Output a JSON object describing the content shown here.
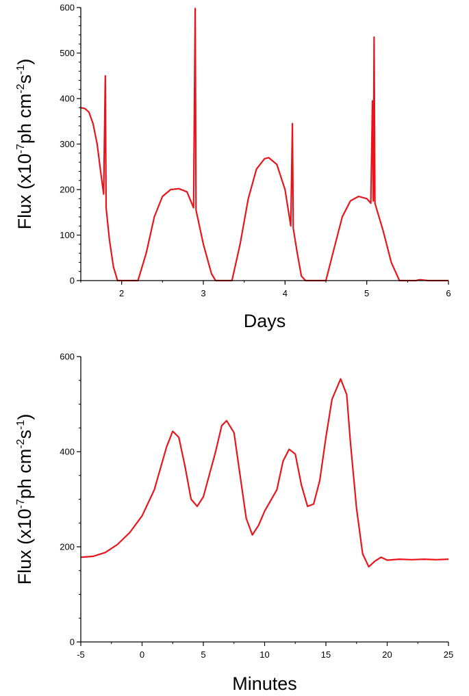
{
  "colors": {
    "series": "#e8141b",
    "axis": "#000000",
    "background": "#ffffff"
  },
  "chart_data": [
    {
      "type": "line",
      "title": "",
      "xlabel": "Days",
      "ylabel_parts": [
        "Flux (x10",
        "-7",
        "ph cm",
        "-2",
        "s",
        "-1",
        ")"
      ],
      "xlim": [
        1.5,
        6
      ],
      "ylim": [
        0,
        600
      ],
      "grid": false,
      "legend": "none",
      "x_ticks": [
        2,
        3,
        4,
        5,
        6
      ],
      "y_ticks": [
        0,
        100,
        200,
        300,
        400,
        500,
        600
      ],
      "series": [
        {
          "points": [
            [
              1.5,
              380
            ],
            [
              1.55,
              378
            ],
            [
              1.6,
              370
            ],
            [
              1.65,
              345
            ],
            [
              1.7,
              300
            ],
            [
              1.75,
              230
            ],
            [
              1.78,
              190
            ],
            [
              1.8,
              450
            ],
            [
              1.81,
              160
            ],
            [
              1.85,
              90
            ],
            [
              1.9,
              30
            ],
            [
              1.95,
              0
            ],
            [
              2.2,
              0
            ],
            [
              2.3,
              60
            ],
            [
              2.4,
              140
            ],
            [
              2.5,
              185
            ],
            [
              2.6,
              200
            ],
            [
              2.7,
              202
            ],
            [
              2.8,
              195
            ],
            [
              2.88,
              160
            ],
            [
              2.9,
              598
            ],
            [
              2.91,
              155
            ],
            [
              3.0,
              80
            ],
            [
              3.1,
              15
            ],
            [
              3.15,
              0
            ],
            [
              3.35,
              0
            ],
            [
              3.45,
              80
            ],
            [
              3.55,
              180
            ],
            [
              3.65,
              245
            ],
            [
              3.75,
              268
            ],
            [
              3.8,
              270
            ],
            [
              3.9,
              255
            ],
            [
              4.0,
              200
            ],
            [
              4.07,
              120
            ],
            [
              4.09,
              345
            ],
            [
              4.1,
              115
            ],
            [
              4.15,
              60
            ],
            [
              4.2,
              10
            ],
            [
              4.25,
              0
            ],
            [
              4.5,
              0
            ],
            [
              4.6,
              70
            ],
            [
              4.7,
              140
            ],
            [
              4.8,
              175
            ],
            [
              4.9,
              185
            ],
            [
              5.0,
              180
            ],
            [
              5.05,
              170
            ],
            [
              5.07,
              395
            ],
            [
              5.08,
              175
            ],
            [
              5.09,
              535
            ],
            [
              5.1,
              170
            ],
            [
              5.2,
              110
            ],
            [
              5.3,
              40
            ],
            [
              5.4,
              0
            ],
            [
              5.6,
              0
            ],
            [
              5.65,
              2
            ],
            [
              5.7,
              1
            ],
            [
              5.75,
              0
            ],
            [
              6.0,
              0
            ]
          ]
        }
      ]
    },
    {
      "type": "line",
      "title": "",
      "xlabel": "Minutes",
      "ylabel_parts": [
        "Flux (x10",
        "-7",
        "ph cm",
        "-2",
        "s",
        "-1",
        ")"
      ],
      "xlim": [
        -5,
        25
      ],
      "ylim": [
        0,
        600
      ],
      "grid": false,
      "legend": "none",
      "x_ticks": [
        -5,
        0,
        5,
        10,
        15,
        20,
        25
      ],
      "y_ticks": [
        0,
        200,
        400,
        600
      ],
      "series": [
        {
          "points": [
            [
              -5,
              178
            ],
            [
              -4,
              180
            ],
            [
              -3,
              188
            ],
            [
              -2,
              205
            ],
            [
              -1,
              230
            ],
            [
              0,
              265
            ],
            [
              1,
              320
            ],
            [
              2,
              410
            ],
            [
              2.5,
              443
            ],
            [
              3,
              430
            ],
            [
              3.5,
              370
            ],
            [
              4,
              300
            ],
            [
              4.5,
              285
            ],
            [
              5,
              305
            ],
            [
              6,
              400
            ],
            [
              6.5,
              455
            ],
            [
              6.9,
              465
            ],
            [
              7.5,
              440
            ],
            [
              8,
              350
            ],
            [
              8.5,
              260
            ],
            [
              9,
              225
            ],
            [
              9.5,
              245
            ],
            [
              10,
              275
            ],
            [
              11,
              320
            ],
            [
              11.5,
              380
            ],
            [
              12,
              405
            ],
            [
              12.5,
              395
            ],
            [
              13,
              330
            ],
            [
              13.5,
              285
            ],
            [
              14,
              290
            ],
            [
              14.5,
              340
            ],
            [
              15,
              430
            ],
            [
              15.5,
              510
            ],
            [
              16.2,
              553
            ],
            [
              16.7,
              520
            ],
            [
              17,
              420
            ],
            [
              17.5,
              280
            ],
            [
              18,
              185
            ],
            [
              18.5,
              158
            ],
            [
              19,
              170
            ],
            [
              19.5,
              178
            ],
            [
              20,
              172
            ],
            [
              21,
              174
            ],
            [
              22,
              173
            ],
            [
              23,
              174
            ],
            [
              24,
              173
            ],
            [
              25,
              174
            ]
          ]
        }
      ]
    }
  ]
}
